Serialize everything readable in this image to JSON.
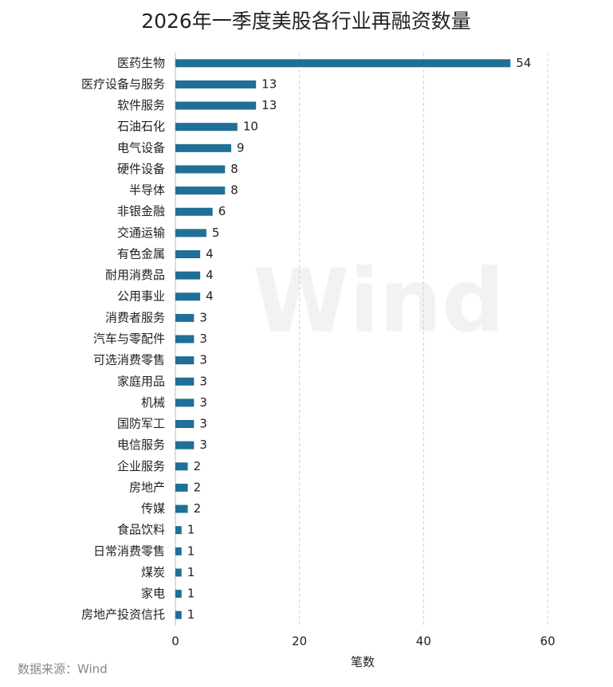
{
  "chart_data": {
    "type": "barh",
    "title": "2026年一季度美股各行业再融资数量",
    "categories": [
      "医药生物",
      "医疗设备与服务",
      "软件服务",
      "石油石化",
      "电气设备",
      "硬件设备",
      "半导体",
      "非银金融",
      "交通运输",
      "有色金属",
      "耐用消费品",
      "公用事业",
      "消费者服务",
      "汽车与零配件",
      "可选消费零售",
      "家庭用品",
      "机械",
      "国防军工",
      "电信服务",
      "企业服务",
      "房地产",
      "传媒",
      "食品饮料",
      "日常消费零售",
      "煤炭",
      "家电",
      "房地产投资信托"
    ],
    "values": [
      54,
      13,
      13,
      10,
      9,
      8,
      8,
      6,
      5,
      4,
      4,
      4,
      3,
      3,
      3,
      3,
      3,
      3,
      3,
      2,
      2,
      2,
      1,
      1,
      1,
      1,
      1
    ],
    "color": "#1f6f96",
    "xlim": [
      0,
      60
    ],
    "xticks": [
      0,
      20,
      40,
      60
    ],
    "grid": true,
    "xlabel": "笔数",
    "source": "数据来源：Wind",
    "watermark": "Wind"
  }
}
